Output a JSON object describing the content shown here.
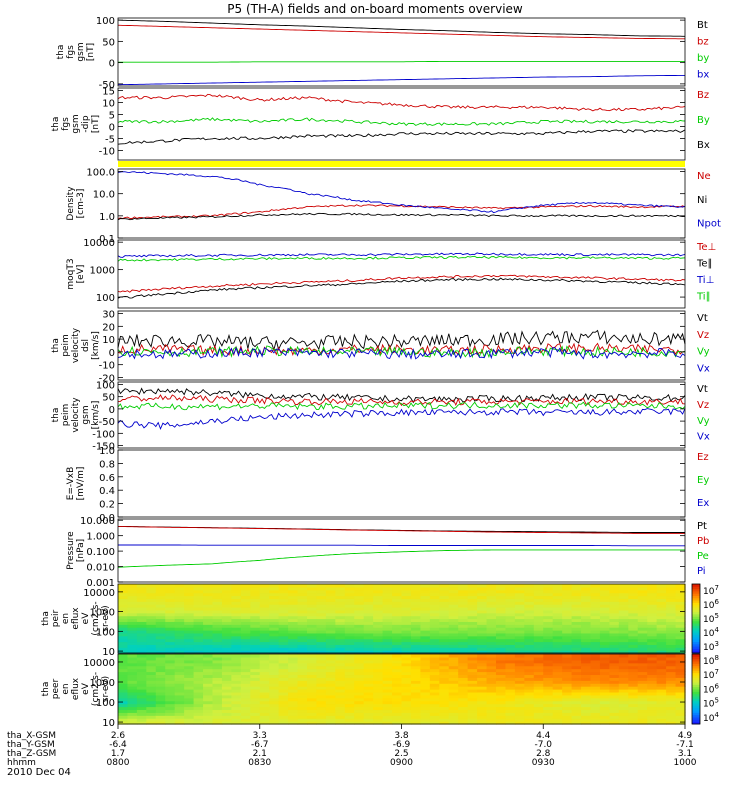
{
  "title": "P5 (TH-A) fields and on-board moments overview",
  "x_axis": {
    "rows": [
      {
        "label": "tha_X-GSM",
        "values": [
          "2.6",
          "3.3",
          "3.8",
          "4.4",
          "4.9"
        ]
      },
      {
        "label": "tha_Y-GSM",
        "values": [
          "-6.4",
          "-6.7",
          "-6.9",
          "-7.0",
          "-7.1"
        ]
      },
      {
        "label": "tha_Z-GSM",
        "values": [
          "1.7",
          "2.1",
          "2.5",
          "2.8",
          "3.1"
        ]
      },
      {
        "label": "hhmm",
        "values": [
          "0800",
          "0830",
          "0900",
          "0930",
          "1000"
        ]
      }
    ],
    "date": "2010 Dec 04"
  },
  "colors": {
    "black": "#000000",
    "red": "#cc0000",
    "green": "#00cc00",
    "blue": "#0000cc",
    "yellow": "#ffff00"
  },
  "chart_data": [
    {
      "type": "line",
      "ylabel": [
        "tha",
        "fgs",
        "gsm",
        "[nT]"
      ],
      "yticks": [
        "100",
        "50",
        "0",
        "-50"
      ],
      "ylim": [
        -55,
        105
      ],
      "x": [
        0,
        10,
        20,
        30,
        40,
        50,
        60,
        70,
        80,
        90,
        100,
        110,
        120
      ],
      "x_unit": "minutes after 0800",
      "series": [
        {
          "name": "Bt",
          "color": "#000000",
          "values": [
            100,
            97,
            93,
            89,
            86,
            82,
            78,
            75,
            71,
            68,
            66,
            63,
            62
          ]
        },
        {
          "name": "bz",
          "color": "#cc0000",
          "values": [
            88,
            85,
            82,
            79,
            76,
            73,
            70,
            67,
            64,
            61,
            59,
            57,
            56
          ]
        },
        {
          "name": "by",
          "color": "#00cc00",
          "values": [
            1,
            1,
            1,
            2,
            2,
            2,
            2,
            3,
            3,
            3,
            3,
            3,
            3
          ]
        },
        {
          "name": "bx",
          "color": "#0000cc",
          "values": [
            -52,
            -50,
            -48,
            -46,
            -44,
            -42,
            -40,
            -38,
            -36,
            -34,
            -33,
            -31,
            -30
          ]
        }
      ]
    },
    {
      "type": "line",
      "ylabel": [
        "tha",
        "fgs",
        "gsm",
        "-dip",
        "[nT]"
      ],
      "yticks": [
        "15",
        "10",
        "5",
        "0",
        "-5",
        "-10"
      ],
      "ylim": [
        -14,
        16
      ],
      "x": [
        0,
        10,
        20,
        30,
        40,
        50,
        60,
        70,
        80,
        90,
        100,
        110,
        120
      ],
      "series": [
        {
          "name": "Bz",
          "color": "#cc0000",
          "values": [
            12,
            12,
            13,
            11,
            12,
            10,
            9,
            8,
            8,
            8,
            7,
            7,
            8
          ]
        },
        {
          "name": "By",
          "color": "#00cc00",
          "values": [
            2,
            2,
            3,
            2,
            3,
            2,
            1,
            1,
            1,
            2,
            2,
            2,
            2
          ]
        },
        {
          "name": "Bx",
          "color": "#000000",
          "values": [
            -7,
            -6,
            -5,
            -5,
            -4,
            -4,
            -3,
            -3,
            -3,
            -3,
            -2,
            -2,
            -2
          ]
        }
      ]
    },
    {
      "type": "line",
      "ylabel": [
        "Density",
        "[cm-3]"
      ],
      "yticks": [
        "100.0",
        "10.0",
        "1.0",
        "0.1"
      ],
      "ylog": true,
      "ylim": [
        0.1,
        130
      ],
      "x": [
        0,
        10,
        20,
        30,
        40,
        50,
        60,
        70,
        80,
        90,
        100,
        110,
        120
      ],
      "series": [
        {
          "name": "Ne",
          "color": "#cc0000",
          "values": [
            0.8,
            0.9,
            1.0,
            1.5,
            2.5,
            3.0,
            2.8,
            2.5,
            2.2,
            2.5,
            2.8,
            2.5,
            2.7
          ]
        },
        {
          "name": "Ni",
          "color": "#000000",
          "values": [
            0.7,
            0.8,
            0.9,
            1.1,
            1.2,
            1.2,
            1.1,
            1.1,
            1.0,
            1.0,
            1.0,
            1.0,
            1.0
          ]
        },
        {
          "name": "Npot",
          "color": "#0000cc",
          "values": [
            100,
            80,
            60,
            25,
            10,
            5,
            3,
            2,
            1.5,
            3,
            4,
            3,
            2.5
          ]
        }
      ]
    },
    {
      "type": "line",
      "ylabel": [
        "moqT3",
        "[eV]"
      ],
      "yticks": [
        "10000",
        "1000",
        "100"
      ],
      "ylog": true,
      "ylim": [
        40,
        12000
      ],
      "x": [
        0,
        10,
        20,
        30,
        40,
        50,
        60,
        70,
        80,
        90,
        100,
        110,
        120
      ],
      "series": [
        {
          "name": "Te⊥",
          "color": "#cc0000",
          "values": [
            150,
            200,
            250,
            300,
            350,
            400,
            500,
            550,
            600,
            550,
            500,
            450,
            400
          ]
        },
        {
          "name": "Te∥",
          "color": "#000000",
          "values": [
            90,
            130,
            180,
            220,
            260,
            300,
            380,
            430,
            450,
            420,
            380,
            330,
            300
          ]
        },
        {
          "name": "Ti⊥",
          "color": "#0000cc",
          "values": [
            3000,
            3200,
            3300,
            3400,
            3500,
            3500,
            3600,
            3700,
            3700,
            3600,
            3500,
            3500,
            3400
          ]
        },
        {
          "name": "Ti∥",
          "color": "#00cc00",
          "values": [
            2200,
            2300,
            2400,
            2500,
            2600,
            2600,
            2700,
            2800,
            2800,
            2700,
            2700,
            2600,
            2600
          ]
        }
      ]
    },
    {
      "type": "line",
      "ylabel": [
        "tha",
        "peim",
        "velocity",
        "dsl",
        "[km/s]"
      ],
      "yticks": [
        "30",
        "20",
        "10",
        "0",
        "-10",
        "-20"
      ],
      "ylim": [
        -22,
        32
      ],
      "x": [
        0,
        10,
        20,
        30,
        40,
        50,
        60,
        70,
        80,
        90,
        100,
        110,
        120
      ],
      "series": [
        {
          "name": "Vt",
          "color": "#000000",
          "values": [
            8,
            9,
            8,
            7,
            7,
            8,
            8,
            9,
            10,
            11,
            12,
            10,
            10
          ]
        },
        {
          "name": "Vz",
          "color": "#cc0000",
          "values": [
            2,
            2,
            1,
            1,
            1,
            2,
            2,
            1,
            2,
            3,
            3,
            2,
            2
          ]
        },
        {
          "name": "Vy",
          "color": "#00cc00",
          "values": [
            1,
            0,
            0,
            1,
            0,
            0,
            0,
            -1,
            0,
            1,
            0,
            0,
            0
          ]
        },
        {
          "name": "Vx",
          "color": "#0000cc",
          "values": [
            -1,
            -2,
            -1,
            0,
            -1,
            -1,
            -2,
            -2,
            -1,
            0,
            -2,
            -1,
            -1
          ]
        }
      ]
    },
    {
      "type": "line",
      "ylabel": [
        "tha",
        "peim",
        "velocity",
        "gsm",
        "[km/s]"
      ],
      "yticks": [
        "100",
        "50",
        "0",
        "-50",
        "-100",
        "-150"
      ],
      "ylim": [
        -160,
        110
      ],
      "x": [
        0,
        10,
        20,
        30,
        40,
        50,
        60,
        70,
        80,
        90,
        100,
        110,
        120
      ],
      "series": [
        {
          "name": "Vt",
          "color": "#000000",
          "values": [
            70,
            75,
            65,
            55,
            50,
            45,
            40,
            40,
            42,
            45,
            48,
            45,
            45
          ]
        },
        {
          "name": "Vz",
          "color": "#cc0000",
          "values": [
            40,
            45,
            40,
            35,
            30,
            30,
            28,
            28,
            30,
            30,
            32,
            30,
            30
          ]
        },
        {
          "name": "Vy",
          "color": "#00cc00",
          "values": [
            10,
            10,
            10,
            12,
            10,
            10,
            12,
            15,
            15,
            15,
            15,
            12,
            12
          ]
        },
        {
          "name": "Vx",
          "color": "#0000cc",
          "values": [
            -60,
            -70,
            -50,
            -35,
            -25,
            -20,
            -15,
            -15,
            -12,
            -15,
            -15,
            -12,
            -10
          ]
        }
      ]
    },
    {
      "type": "line",
      "ylabel": [
        "E=-VxB",
        "[mV/m]"
      ],
      "yticks": [
        "1.0",
        "0.8",
        "0.6",
        "0.4",
        "0.2",
        "0.0"
      ],
      "ylim": [
        0,
        1
      ],
      "x": [],
      "series": [
        {
          "name": "Ez",
          "color": "#cc0000",
          "values": []
        },
        {
          "name": "Ey",
          "color": "#00cc00",
          "values": []
        },
        {
          "name": "Ex",
          "color": "#0000cc",
          "values": []
        }
      ]
    },
    {
      "type": "line",
      "ylabel": [
        "Pressure",
        "[nPa]"
      ],
      "yticks": [
        "10.000",
        "1.000",
        "0.100",
        "0.010",
        "0.001"
      ],
      "ylog": true,
      "ylim": [
        0.001,
        12
      ],
      "x": [
        0,
        10,
        20,
        30,
        40,
        50,
        60,
        70,
        80,
        90,
        100,
        110,
        120
      ],
      "series": [
        {
          "name": "Pt",
          "color": "#000000",
          "values": [
            4.0,
            3.6,
            3.3,
            3.0,
            2.7,
            2.4,
            2.2,
            2.0,
            1.9,
            1.8,
            1.7,
            1.6,
            1.6
          ]
        },
        {
          "name": "Pb",
          "color": "#cc0000",
          "values": [
            3.9,
            3.5,
            3.2,
            2.9,
            2.6,
            2.3,
            2.1,
            1.9,
            1.7,
            1.6,
            1.5,
            1.4,
            1.4
          ]
        },
        {
          "name": "Pe",
          "color": "#00cc00",
          "values": [
            0.009,
            0.012,
            0.015,
            0.025,
            0.045,
            0.07,
            0.09,
            0.11,
            0.12,
            0.12,
            0.12,
            0.12,
            0.12
          ]
        },
        {
          "name": "Pi",
          "color": "#0000cc",
          "values": [
            0.25,
            0.25,
            0.24,
            0.24,
            0.24,
            0.24,
            0.23,
            0.23,
            0.23,
            0.23,
            0.23,
            0.22,
            0.22
          ]
        }
      ]
    },
    {
      "type": "heatmap",
      "ylabel": [
        "tha",
        "peir",
        "en",
        "eflux",
        "eV",
        "(cm2-s-",
        "sr-eV)"
      ],
      "yticks": [
        "10000",
        "1000",
        "100",
        "10"
      ],
      "ylog": true,
      "ylim": [
        8,
        25000
      ],
      "colorbar_ticks": [
        "10^7",
        "10^6",
        "10^5",
        "10^4",
        "10^3"
      ],
      "x": [
        0,
        20,
        40,
        60,
        80,
        100,
        120
      ],
      "y": [
        10,
        100,
        1000,
        10000
      ],
      "z_log10": [
        [
          4.4,
          4.3,
          4.3,
          4.4,
          4.5,
          4.6,
          4.7
        ],
        [
          4.6,
          4.9,
          5.1,
          5.2,
          5.2,
          5.2,
          5.3
        ],
        [
          5.6,
          5.7,
          5.7,
          5.7,
          5.6,
          5.6,
          5.7
        ],
        [
          5.9,
          5.9,
          5.9,
          5.9,
          5.9,
          5.9,
          6.0
        ]
      ]
    },
    {
      "type": "heatmap",
      "ylabel": [
        "tha",
        "peer",
        "en",
        "eflux",
        "eV",
        "(cm2-s-",
        "sr-eV)"
      ],
      "yticks": [
        "10000",
        "1000",
        "100",
        "10"
      ],
      "ylog": true,
      "ylim": [
        8,
        25000
      ],
      "colorbar_ticks": [
        "10^8",
        "10^7",
        "10^6",
        "10^5",
        "10^4"
      ],
      "x": [
        0,
        20,
        40,
        60,
        80,
        100,
        120
      ],
      "y": [
        10,
        100,
        1000,
        10000
      ],
      "z_log10": [
        [
          6.6,
          6.6,
          6.7,
          6.7,
          6.8,
          6.8,
          6.8
        ],
        [
          5.4,
          6.4,
          7.0,
          7.0,
          6.9,
          6.6,
          6.7
        ],
        [
          6.0,
          6.4,
          6.8,
          7.0,
          7.3,
          7.5,
          7.5
        ],
        [
          6.0,
          6.2,
          6.6,
          7.0,
          7.6,
          7.8,
          7.8
        ]
      ]
    }
  ]
}
